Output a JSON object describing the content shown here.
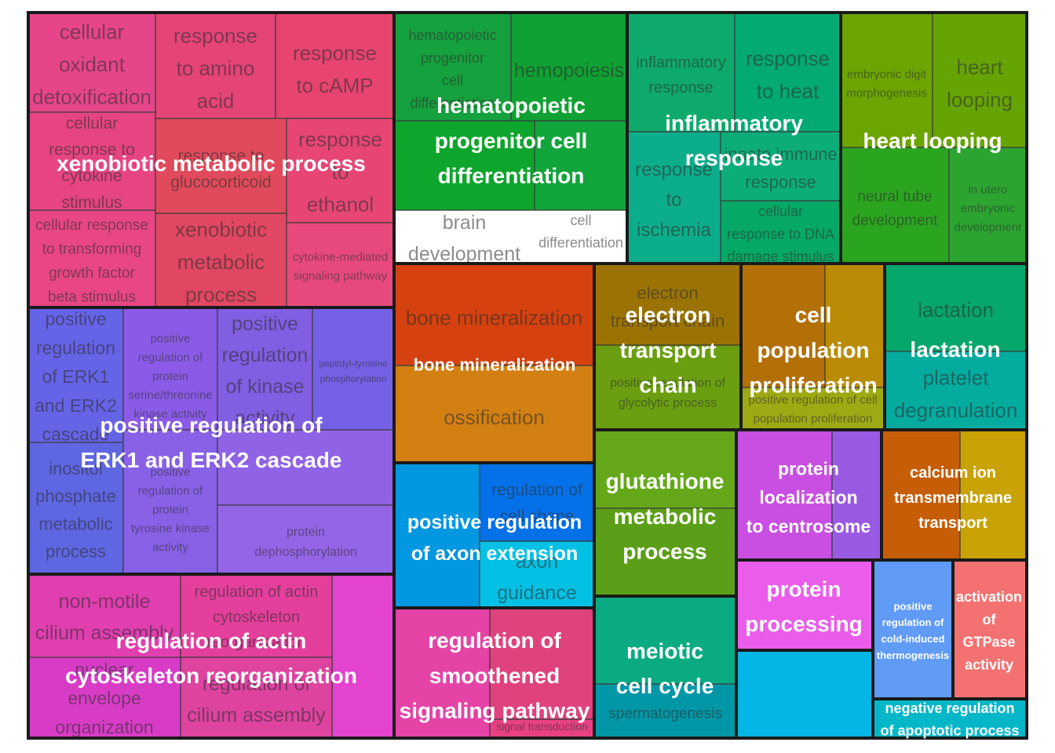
{
  "chart_data": {
    "type": "treemap",
    "groups": [
      {
        "label": "xenobiotic metabolic process",
        "tiles": [
          {
            "name": "cellular oxidant detoxification",
            "color": "#E74589"
          },
          {
            "name": "response to amino acid",
            "color": "#E54477"
          },
          {
            "name": "response to cAMP",
            "color": "#E84470"
          },
          {
            "name": "cellular response to cytokine stimulus",
            "color": "#E64482"
          },
          {
            "name": "response to glucocorticoid",
            "color": "#E14A5C"
          },
          {
            "name": "response to ethanol",
            "color": "#E74675"
          },
          {
            "name": "xenobiotic metabolic process",
            "color": "#E14762"
          },
          {
            "name": "cellular response to transforming growth factor beta stimulus",
            "color": "#E84685"
          },
          {
            "name": "cytokine-mediated signaling pathway",
            "color": "#E8497D"
          }
        ]
      },
      {
        "label": "hematopoietic progenitor cell differentiation",
        "tiles": [
          {
            "name": "hematopoietic progenitor cell differentiation",
            "color": "#15A13E"
          },
          {
            "name": "hemopoiesis",
            "color": "#0FA133"
          },
          {
            "name": "brain development",
            "color": "#0DA52C"
          },
          {
            "name": "cell differentiation",
            "color": "#11A53B"
          }
        ]
      },
      {
        "label": "inflammatory response",
        "tiles": [
          {
            "name": "inflammatory response",
            "color": "#0EAA6B"
          },
          {
            "name": "response to heat",
            "color": "#03AA73"
          },
          {
            "name": "response to ischemia",
            "color": "#0CAD8B"
          },
          {
            "name": "innate immune response",
            "color": "#0CAD78"
          },
          {
            "name": "cellular response to DNA damage stimulus",
            "color": "#05A865"
          }
        ]
      },
      {
        "label": "heart looping",
        "tiles": [
          {
            "name": "embryonic digit morphogenesis",
            "color": "#6CA402"
          },
          {
            "name": "heart looping",
            "color": "#66A404"
          },
          {
            "name": "neural tube development",
            "color": "#2BA420"
          },
          {
            "name": "in utero embryonic development",
            "color": "#2BA530"
          }
        ]
      },
      {
        "label": "positive regulation of ERK1 and ERK2 cascade",
        "tiles": [
          {
            "name": "positive regulation of ERK1 and ERK2 cascade",
            "color": "#6563E6"
          },
          {
            "name": "positive regulation of protein serine/threonine kinase activity",
            "color": "#8B5BE8"
          },
          {
            "name": "positive regulation of kinase activity",
            "color": "#815EE2"
          },
          {
            "name": "peptidyl-tyrosine phosphorylation",
            "color": "#7461E5"
          },
          {
            "name": "inositol phosphate metabolic process",
            "color": "#5E66E2"
          },
          {
            "name": "positive regulation of protein tyrosine kinase activity",
            "color": "#8861E7"
          },
          {
            "name": "",
            "color": "#8F62E6"
          },
          {
            "name": "protein dephosphorylation",
            "color": "#9465E6"
          }
        ]
      },
      {
        "label": "bone mineralization",
        "tiles": [
          {
            "name": "bone mineralization",
            "color": "#D5420F"
          },
          {
            "name": "ossification",
            "color": "#D38013"
          }
        ]
      },
      {
        "label": "electron transport chain",
        "tiles": [
          {
            "name": "electron transport chain",
            "color": "#9B7305"
          },
          {
            "name": "positive regulation of glycolytic process",
            "color": "#6B9E10"
          }
        ]
      },
      {
        "label": "cell population proliferation",
        "tiles": [
          {
            "name": "",
            "color": "#B27006"
          },
          {
            "name": "",
            "color": "#BA8C06"
          },
          {
            "name": "positive regulation of cell population proliferation",
            "color": "#9EA913"
          }
        ]
      },
      {
        "label": "lactation",
        "tiles": [
          {
            "name": "lactation",
            "color": "#06A76A"
          },
          {
            "name": "platelet degranulation",
            "color": "#04ACA0"
          }
        ]
      },
      {
        "label": "positive regulation of axon extension",
        "tiles": [
          {
            "name": "",
            "color": "#0297E1"
          },
          {
            "name": "regulation of cell shape",
            "color": "#0471E8"
          },
          {
            "name": "axon guidance",
            "color": "#03C1E5"
          }
        ]
      },
      {
        "label": "glutathione metabolic process",
        "tiles": [
          {
            "name": "",
            "color": "#64A81A"
          },
          {
            "name": "",
            "color": "#5B9F18"
          }
        ]
      },
      {
        "label": "protein localization to centrosome",
        "tiles": [
          {
            "name": "",
            "color": "#C84FE1"
          },
          {
            "name": "",
            "color": "#9A59E3"
          }
        ]
      },
      {
        "label": "calcium ion transmembrane transport",
        "tiles": [
          {
            "name": "",
            "color": "#C65E08"
          },
          {
            "name": "",
            "color": "#C9A206"
          }
        ]
      },
      {
        "label": "regulation of actin cytoskeleton reorganization",
        "tiles": [
          {
            "name": "non-motile cilium assembly",
            "color": "#E13EB0"
          },
          {
            "name": "regulation of actin cytoskeleton reorganization",
            "color": "#E43F9C"
          },
          {
            "name": "",
            "color": "#E343CE"
          },
          {
            "name": "nuclear envelope organization",
            "color": "#D83CC6"
          },
          {
            "name": "regulation of cilium assembly",
            "color": "#DE43A0"
          }
        ]
      },
      {
        "label": "regulation of smoothened signaling pathway",
        "tiles": [
          {
            "name": "",
            "color": "#E543A6"
          },
          {
            "name": "",
            "color": "#E0427D"
          },
          {
            "name": "signal transduction",
            "color": "#E74184"
          }
        ]
      },
      {
        "label": "meiotic cell cycle",
        "tiles": [
          {
            "name": "",
            "color": "#0AAB82"
          },
          {
            "name": "spermatogenesis",
            "color": "#0297A7"
          }
        ]
      },
      {
        "label": "protein processing",
        "tiles": [
          {
            "name": "",
            "color": "#EA5CEA"
          }
        ]
      },
      {
        "label": "",
        "tiles": [
          {
            "name": "",
            "color": "#03B6E6"
          }
        ]
      },
      {
        "label": "positive regulation of cold-induced thermogenesis",
        "tiles": [
          {
            "name": "",
            "color": "#609BF6"
          }
        ]
      },
      {
        "label": "activation of GTPase activity",
        "tiles": [
          {
            "name": "",
            "color": "#F47171"
          }
        ]
      },
      {
        "label": "negative regulation of apoptotic process",
        "tiles": [
          {
            "name": "",
            "color": "#04B7C8"
          }
        ]
      }
    ]
  }
}
